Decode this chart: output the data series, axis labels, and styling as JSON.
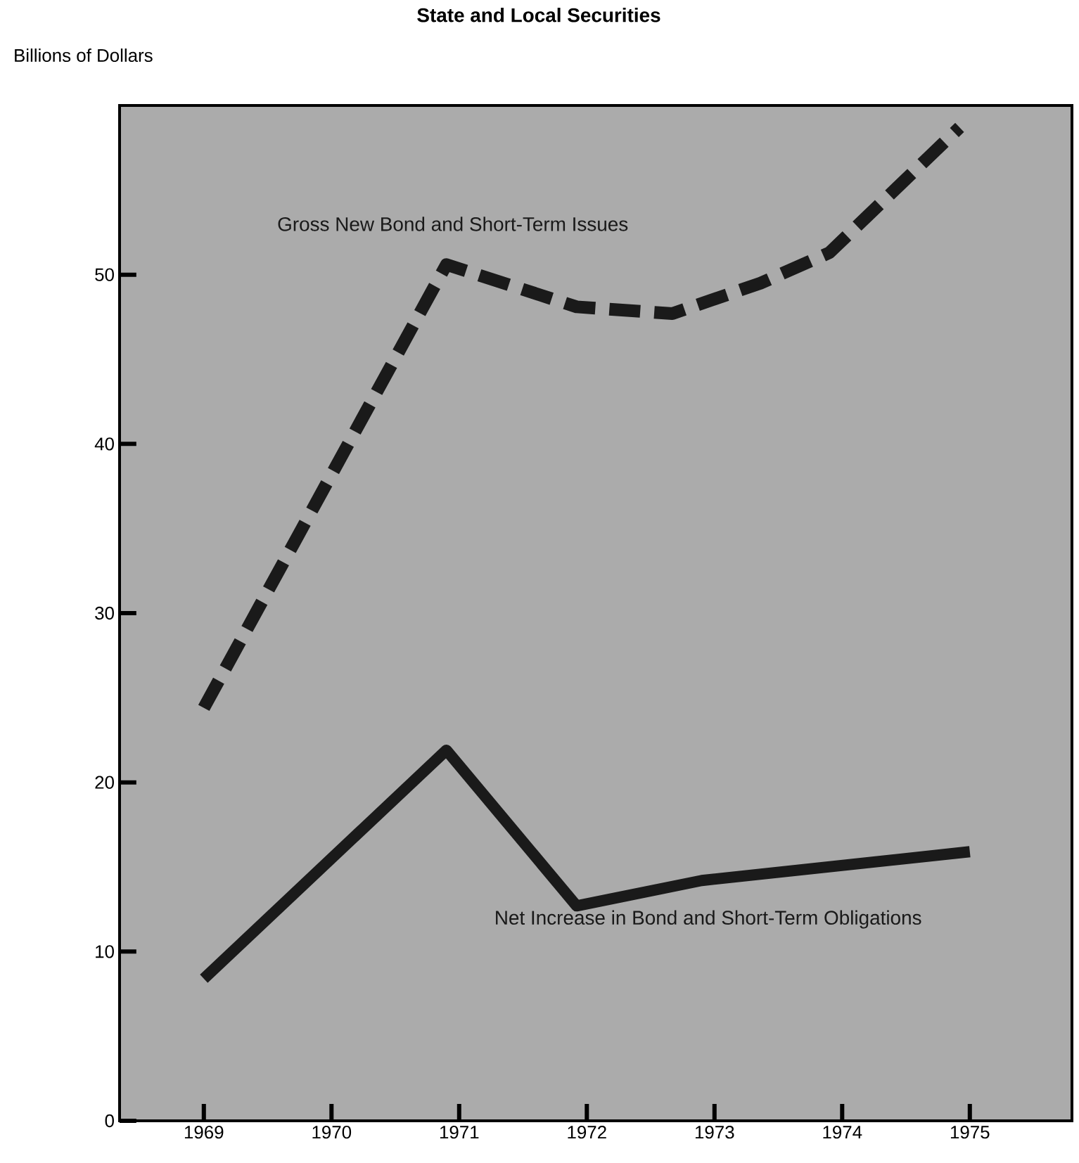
{
  "chart_data": {
    "type": "line",
    "title": "State and Local Securities",
    "ylabel": "Billions of Dollars",
    "xlim": [
      1968.34,
      1975.8
    ],
    "xticks": [
      1969,
      1970,
      1971,
      1972,
      1973,
      1974,
      1975
    ],
    "ylim": [
      0,
      60
    ],
    "yticks": [
      0,
      10,
      20,
      30,
      40,
      50
    ],
    "series": [
      {
        "name": "Gross New Bond and Short-Term Issues",
        "color": "#1a1a1a",
        "line_style": "dashed",
        "x": [
          1969,
          1970.9,
          1971.92,
          1972.67,
          1973.36,
          1973.9,
          1974.92
        ],
        "values": [
          24.4,
          50.6,
          48.1,
          47.7,
          49.5,
          51.3,
          58.7
        ]
      },
      {
        "name": "Net Increase in Bond and Short-Term Obligations",
        "color": "#1a1a1a",
        "line_style": "solid",
        "x": [
          1969,
          1970.9,
          1971.92,
          1972.9,
          1975
        ],
        "values": [
          8.4,
          21.9,
          12.7,
          14.2,
          15.9
        ]
      }
    ],
    "grid": false,
    "marker": "none"
  }
}
